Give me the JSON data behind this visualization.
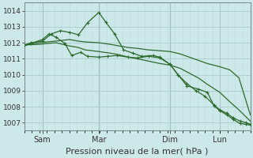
{
  "bg_color": "#cde8e8",
  "grid_color_major": "#a8cccc",
  "grid_color_minor": "#b8d8d8",
  "line_color": "#2d6a2d",
  "xlabel": "Pression niveau de la mer( hPa )",
  "xlabel_fontsize": 8,
  "ylim": [
    1006.5,
    1014.5
  ],
  "yticks": [
    1007,
    1008,
    1009,
    1010,
    1011,
    1012,
    1013,
    1014
  ],
  "xtick_labels": [
    "Sam",
    "Mar",
    "Dim",
    "Lun"
  ],
  "xtick_positions": [
    0.08,
    0.33,
    0.645,
    0.865
  ],
  "vline_positions": [
    0.08,
    0.33,
    0.645,
    0.865
  ],
  "series": [
    {
      "x": [
        0.0,
        0.03,
        0.07,
        0.1,
        0.14,
        0.17,
        0.2,
        0.24,
        0.27,
        0.33,
        0.38,
        0.42,
        0.46,
        0.5,
        0.55,
        0.6,
        0.645,
        0.69,
        0.73,
        0.77,
        0.81,
        0.865,
        0.91,
        0.95,
        1.0
      ],
      "y": [
        1011.85,
        1011.92,
        1012.0,
        1012.05,
        1012.1,
        1012.15,
        1012.2,
        1012.1,
        1012.05,
        1012.0,
        1011.9,
        1011.8,
        1011.7,
        1011.65,
        1011.55,
        1011.5,
        1011.45,
        1011.3,
        1011.1,
        1010.9,
        1010.7,
        1010.5,
        1010.3,
        1009.8,
        1007.5
      ],
      "markers": false
    },
    {
      "x": [
        0.0,
        0.03,
        0.07,
        0.1,
        0.14,
        0.17,
        0.2,
        0.24,
        0.27,
        0.33,
        0.38,
        0.42,
        0.46,
        0.5,
        0.55,
        0.6,
        0.645,
        0.69,
        0.73,
        0.77,
        0.81,
        0.865,
        0.91,
        0.95,
        1.0
      ],
      "y": [
        1011.85,
        1011.88,
        1011.9,
        1011.95,
        1012.0,
        1011.9,
        1011.8,
        1011.7,
        1011.55,
        1011.45,
        1011.35,
        1011.25,
        1011.1,
        1011.0,
        1010.85,
        1010.7,
        1010.6,
        1010.4,
        1010.1,
        1009.8,
        1009.4,
        1008.9,
        1008.3,
        1007.8,
        1007.1
      ],
      "markers": false
    },
    {
      "x": [
        0.0,
        0.03,
        0.08,
        0.12,
        0.16,
        0.2,
        0.24,
        0.28,
        0.33,
        0.36,
        0.4,
        0.44,
        0.48,
        0.52,
        0.57,
        0.6,
        0.645,
        0.68,
        0.72,
        0.76,
        0.8,
        0.84,
        0.865,
        0.895,
        0.925,
        0.955,
        0.98,
        1.0
      ],
      "y": [
        1011.85,
        1012.0,
        1012.1,
        1012.55,
        1012.75,
        1012.65,
        1012.5,
        1013.25,
        1013.9,
        1013.3,
        1012.55,
        1011.55,
        1011.35,
        1011.15,
        1011.2,
        1011.1,
        1010.65,
        1010.0,
        1009.45,
        1009.0,
        1008.65,
        1008.1,
        1007.8,
        1007.6,
        1007.3,
        1007.1,
        1007.0,
        1006.9
      ],
      "markers": true
    },
    {
      "x": [
        0.0,
        0.03,
        0.08,
        0.11,
        0.14,
        0.18,
        0.21,
        0.25,
        0.28,
        0.33,
        0.37,
        0.41,
        0.46,
        0.5,
        0.55,
        0.6,
        0.645,
        0.68,
        0.72,
        0.77,
        0.81,
        0.84,
        0.865,
        0.895,
        0.925,
        0.955,
        0.98,
        1.0
      ],
      "y": [
        1011.85,
        1011.95,
        1012.2,
        1012.55,
        1012.35,
        1011.95,
        1011.2,
        1011.4,
        1011.15,
        1011.1,
        1011.15,
        1011.2,
        1011.1,
        1011.05,
        1011.15,
        1011.05,
        1010.65,
        1010.0,
        1009.3,
        1009.1,
        1008.9,
        1008.05,
        1007.75,
        1007.5,
        1007.2,
        1006.95,
        1006.9,
        1006.85
      ],
      "markers": true
    }
  ]
}
